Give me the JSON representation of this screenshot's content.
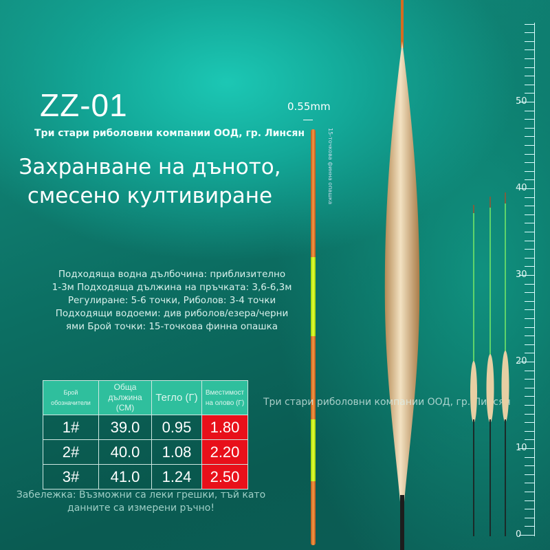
{
  "product": {
    "model": "ZZ-01",
    "company": "Три стари риболовни компании ООД, гр. Линсян",
    "headline_line1": "Захранване на дъното,",
    "headline_line2": "смесено култивиране"
  },
  "specs": [
    "Подходяща водна дълбочина: приблизително",
    "1-3м Подходяща дължина на пръчката: 3,6-6,3м",
    "Регулиране: 5-6 точки, Риболов: 3-4 точки",
    "Подходящи водоеми: див риболов/езера/черни",
    "ями Брой точки: 15-точкова финна опашка"
  ],
  "table": {
    "headers": [
      "Брой обозначители",
      "Обща дължина (СМ)",
      "Тегло (Г)",
      "Вместимост на олово (Г)"
    ],
    "rows": [
      [
        "1#",
        "39.0",
        "0.95",
        "1.80"
      ],
      [
        "2#",
        "40.0",
        "1.08",
        "2.20"
      ],
      [
        "3#",
        "41.0",
        "1.24",
        "2.50"
      ]
    ],
    "highlight_color": "#e8101a",
    "header_color": "#2fbf9d"
  },
  "note_line1": "Забележка: Възможни са леки грешки, тъй като",
  "note_line2": "данните са измерени ръчно!",
  "watermark": "Три стари риболовни компании ООД, гр. Линсян",
  "tip": {
    "diameter": "0.55mm",
    "label": "15-точкова финна опашка"
  },
  "ruler": {
    "labels": [
      "50",
      "40",
      "30",
      "20",
      "10",
      "0"
    ],
    "min": 0,
    "max": 50
  }
}
